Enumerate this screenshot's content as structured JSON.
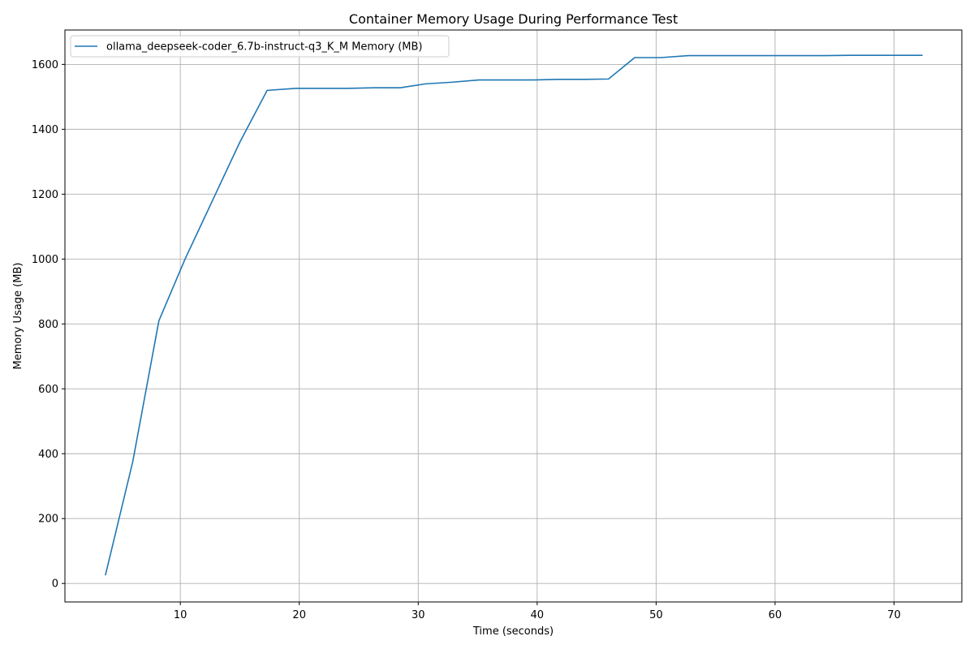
{
  "chart_data": {
    "type": "line",
    "title": "Container Memory Usage During Performance Test",
    "xlabel": "Time (seconds)",
    "ylabel": "Memory Usage (MB)",
    "xlim": [
      0.3,
      75.7
    ],
    "ylim": [
      -57,
      1706
    ],
    "xticks": [
      10,
      20,
      30,
      40,
      50,
      60,
      70
    ],
    "yticks": [
      0,
      200,
      400,
      600,
      800,
      1000,
      1200,
      1400,
      1600
    ],
    "grid": true,
    "legend": {
      "placement": "top-left"
    },
    "series": [
      {
        "name": "ollama_deepseek-coder_6.7b-instruct-q3_K_M Memory (MB)",
        "color": "#1f77b4",
        "x": [
          3.7,
          6.0,
          8.2,
          10.4,
          12.7,
          15.0,
          17.3,
          19.7,
          21.9,
          24.0,
          26.3,
          28.5,
          30.6,
          32.8,
          35.1,
          37.4,
          39.7,
          41.8,
          44.0,
          46.0,
          48.2,
          50.4,
          52.7,
          55.0,
          57.3,
          59.6,
          61.8,
          64.0,
          66.2,
          68.5,
          70.5,
          72.4
        ],
        "y": [
          25,
          375,
          810,
          1000,
          1180,
          1360,
          1520,
          1526,
          1526,
          1526,
          1528,
          1528,
          1540,
          1545,
          1552,
          1552,
          1552,
          1554,
          1554,
          1555,
          1621,
          1621,
          1627,
          1627,
          1627,
          1627,
          1627,
          1627,
          1628,
          1628,
          1628,
          1628
        ]
      }
    ]
  }
}
